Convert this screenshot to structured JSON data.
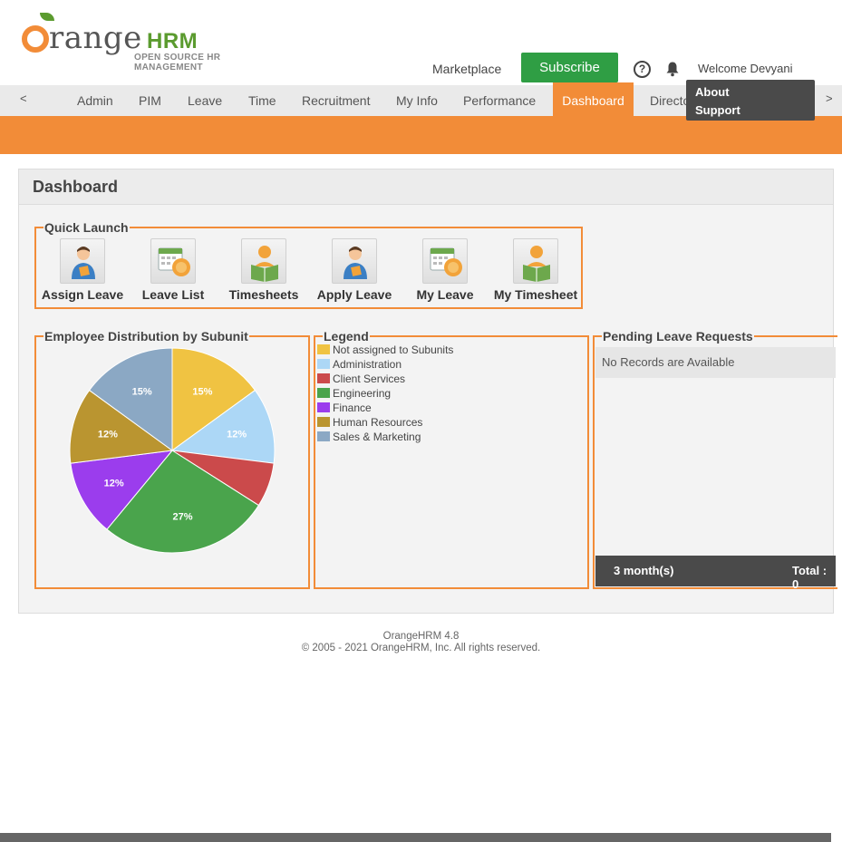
{
  "brand": {
    "word": "range",
    "hrm": "HRM",
    "tagline": "OPEN SOURCE HR MANAGEMENT"
  },
  "header": {
    "marketplace": "Marketplace",
    "subscribe": "Subscribe",
    "help_icon": "question-circle-icon",
    "help_glyph": "?",
    "bell_icon": "bell-icon",
    "welcome": "Welcome Devyani"
  },
  "nav": {
    "prev": "<",
    "next": ">",
    "items": [
      "Admin",
      "PIM",
      "Leave",
      "Time",
      "Recruitment",
      "My Info",
      "Performance",
      "Dashboard",
      "Directo"
    ]
  },
  "dropdown": {
    "about": "About",
    "support": "Support"
  },
  "dashboard": {
    "title": "Dashboard",
    "quick_launch": {
      "legend": "Quick Launch",
      "items": [
        "Assign Leave",
        "Leave List",
        "Timesheets",
        "Apply Leave",
        "My Leave",
        "My Timesheet"
      ]
    },
    "distribution": {
      "legend": "Employee Distribution by Subunit"
    },
    "legend_box": {
      "legend": "Legend",
      "entries": [
        "Not assigned to Subunits",
        "Administration",
        "Client Services",
        "Engineering",
        "Finance",
        "Human Resources",
        "Sales & Marketing"
      ]
    },
    "pending": {
      "legend": "Pending Leave Requests",
      "empty": "No Records are Available",
      "period": "3 month(s)",
      "total": "Total : 0"
    }
  },
  "chart_data": {
    "type": "pie",
    "title": "Employee Distribution by Subunit",
    "categories": [
      "Not assigned to Subunits",
      "Administration",
      "Client Services",
      "Engineering",
      "Finance",
      "Human Resources",
      "Sales & Marketing"
    ],
    "values": [
      15,
      12,
      7,
      27,
      12,
      12,
      15
    ],
    "labels": [
      "15%",
      "12%",
      "",
      "27%",
      "12%",
      "12%",
      "15%"
    ],
    "colors": [
      "#f0c342",
      "#acd7f6",
      "#cb4a4b",
      "#4aa44c",
      "#9b3ded",
      "#ba9530",
      "#8ba8c4"
    ]
  },
  "footer": {
    "version": "OrangeHRM 4.8",
    "copyright": "© 2005 - 2021 OrangeHRM, Inc. All rights reserved."
  }
}
